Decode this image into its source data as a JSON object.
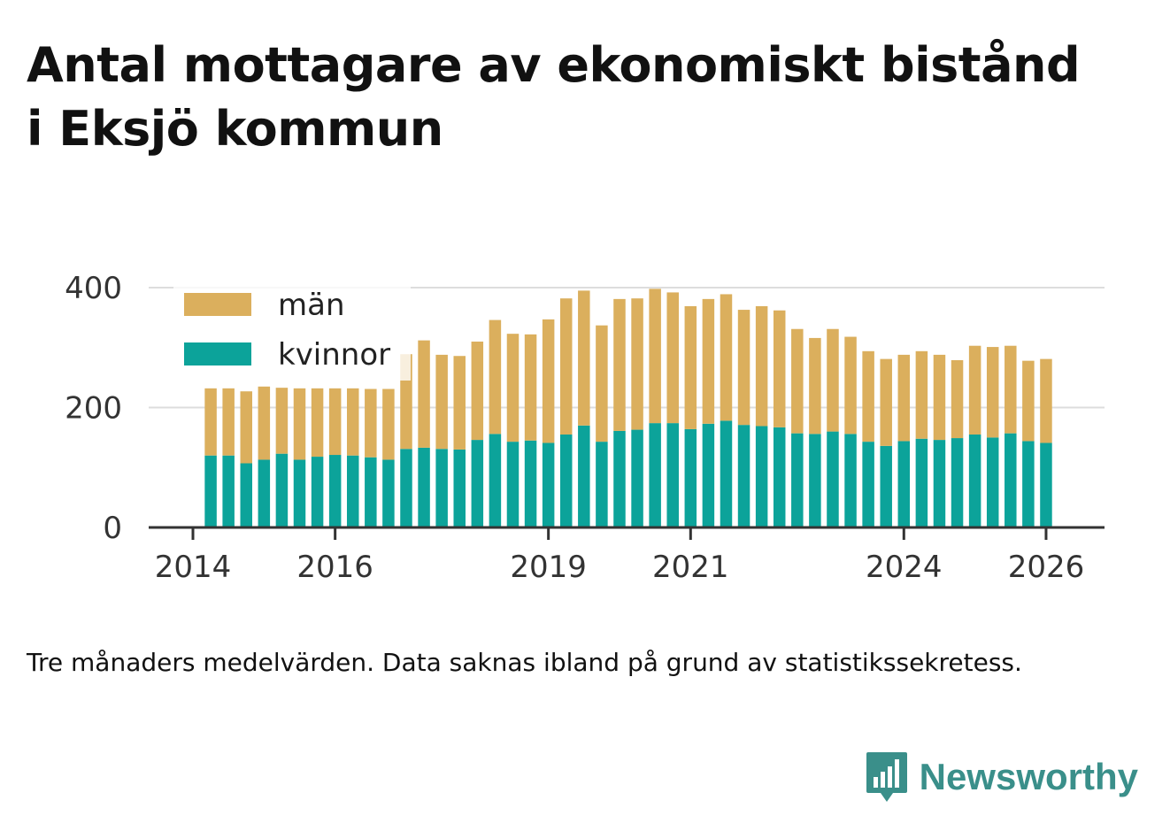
{
  "title_line1": "Antal mottagare av ekonomiskt bistånd",
  "title_line2": "i Eksjö kommun",
  "caption": "Tre månaders medelvärden. Data saknas ibland på grund av statistikssekretess.",
  "brand": {
    "name": "Newsworthy",
    "color": "#3a8f8a"
  },
  "colors": {
    "kvinnor": "#0ca39a",
    "man": "#dbaf5d",
    "grid": "#dddddd",
    "axis": "#333333"
  },
  "chart_data": {
    "type": "bar",
    "stacked": true,
    "title": "Antal mottagare av ekonomiskt bistånd i Eksjö kommun",
    "ylim": [
      0,
      400
    ],
    "yticks": [
      0,
      200,
      400
    ],
    "xlim": [
      2014,
      2026.5
    ],
    "xticks": [
      2014,
      2016,
      2019,
      2021,
      2024,
      2026
    ],
    "xtick_labels": [
      "2014",
      "2016",
      "2019",
      "2021",
      "2024",
      "2026"
    ],
    "legend": {
      "position": "top-left",
      "entries": [
        "män",
        "kvinnor"
      ]
    },
    "x": [
      2014.25,
      2014.5,
      2014.75,
      2015.0,
      2015.25,
      2015.5,
      2015.75,
      2016.0,
      2016.25,
      2016.5,
      2016.75,
      2017.0,
      2017.25,
      2017.5,
      2017.75,
      2018.0,
      2018.25,
      2018.5,
      2018.75,
      2019.0,
      2019.25,
      2019.5,
      2019.75,
      2020.0,
      2020.25,
      2020.5,
      2020.75,
      2021.0,
      2021.25,
      2021.5,
      2021.75,
      2022.0,
      2022.25,
      2022.5,
      2022.75,
      2023.0,
      2023.25,
      2023.5,
      2023.75,
      2024.0,
      2024.25,
      2024.5,
      2024.75,
      2025.0,
      2025.25,
      2025.5,
      2025.75,
      2026.0
    ],
    "series": [
      {
        "name": "kvinnor",
        "values": [
          120,
          120,
          107,
          113,
          123,
          113,
          118,
          121,
          120,
          117,
          113,
          131,
          133,
          131,
          130,
          146,
          156,
          143,
          145,
          141,
          155,
          170,
          143,
          161,
          163,
          174,
          174,
          164,
          173,
          178,
          171,
          169,
          167,
          157,
          156,
          160,
          156,
          143,
          136,
          144,
          148,
          146,
          149,
          155,
          150,
          157,
          144,
          141
        ]
      },
      {
        "name": "män",
        "values": [
          112,
          112,
          120,
          122,
          110,
          119,
          114,
          111,
          112,
          114,
          118,
          158,
          179,
          157,
          156,
          164,
          190,
          180,
          177,
          206,
          227,
          225,
          194,
          220,
          219,
          224,
          218,
          205,
          208,
          211,
          192,
          200,
          195,
          174,
          160,
          171,
          162,
          151,
          145,
          144,
          146,
          142,
          130,
          148,
          151,
          146,
          134,
          140
        ]
      }
    ]
  }
}
